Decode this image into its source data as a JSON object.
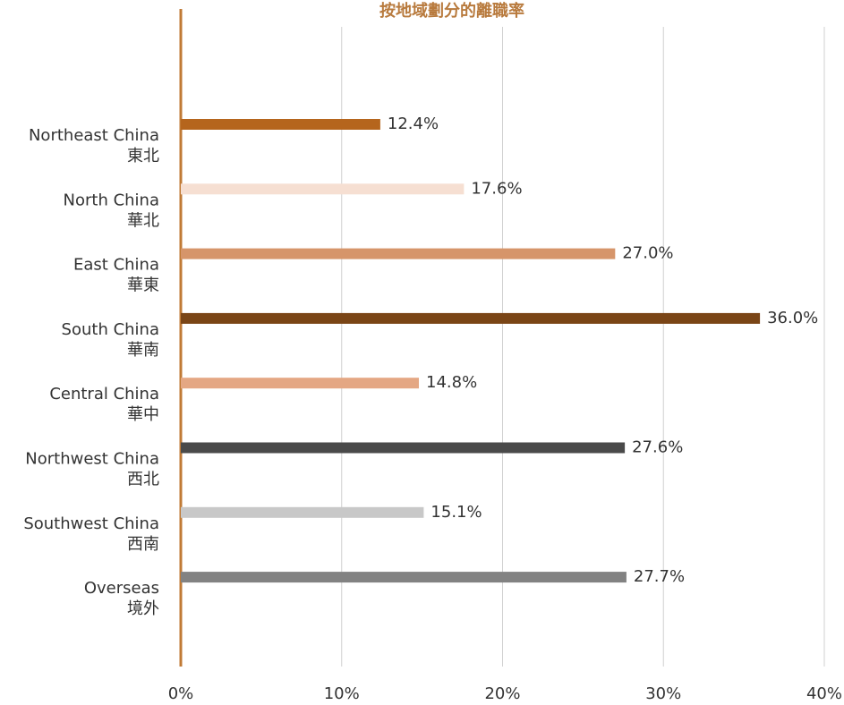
{
  "chart_data": {
    "type": "bar",
    "orientation": "horizontal",
    "title": "按地域劃分的離職率",
    "categories": [
      [
        "Northeast China",
        "東北"
      ],
      [
        "North China",
        "華北"
      ],
      [
        "East China",
        "華東"
      ],
      [
        "South China",
        "華南"
      ],
      [
        "Central China",
        "華中"
      ],
      [
        "Northwest China",
        "西北"
      ],
      [
        "Southwest China",
        "西南"
      ],
      [
        "Overseas",
        "境外"
      ]
    ],
    "values": [
      12.4,
      17.6,
      27.0,
      36.0,
      14.8,
      27.6,
      15.1,
      27.7
    ],
    "value_labels": [
      "12.4%",
      "17.6%",
      "27.0%",
      "36.0%",
      "14.8%",
      "27.6%",
      "15.1%",
      "27.7%"
    ],
    "colors": [
      "#b5651d",
      "#f6dfd2",
      "#d6956a",
      "#7a4516",
      "#e4a783",
      "#4a4a4a",
      "#c8c8c8",
      "#828282"
    ],
    "xlim": [
      0,
      40
    ],
    "xticks": [
      {
        "value": 0,
        "label": "0%"
      },
      {
        "value": 10,
        "label": "10%"
      },
      {
        "value": 20,
        "label": "20%"
      },
      {
        "value": 30,
        "label": "30%"
      },
      {
        "value": 40,
        "label": "40%"
      }
    ],
    "grid": true
  }
}
